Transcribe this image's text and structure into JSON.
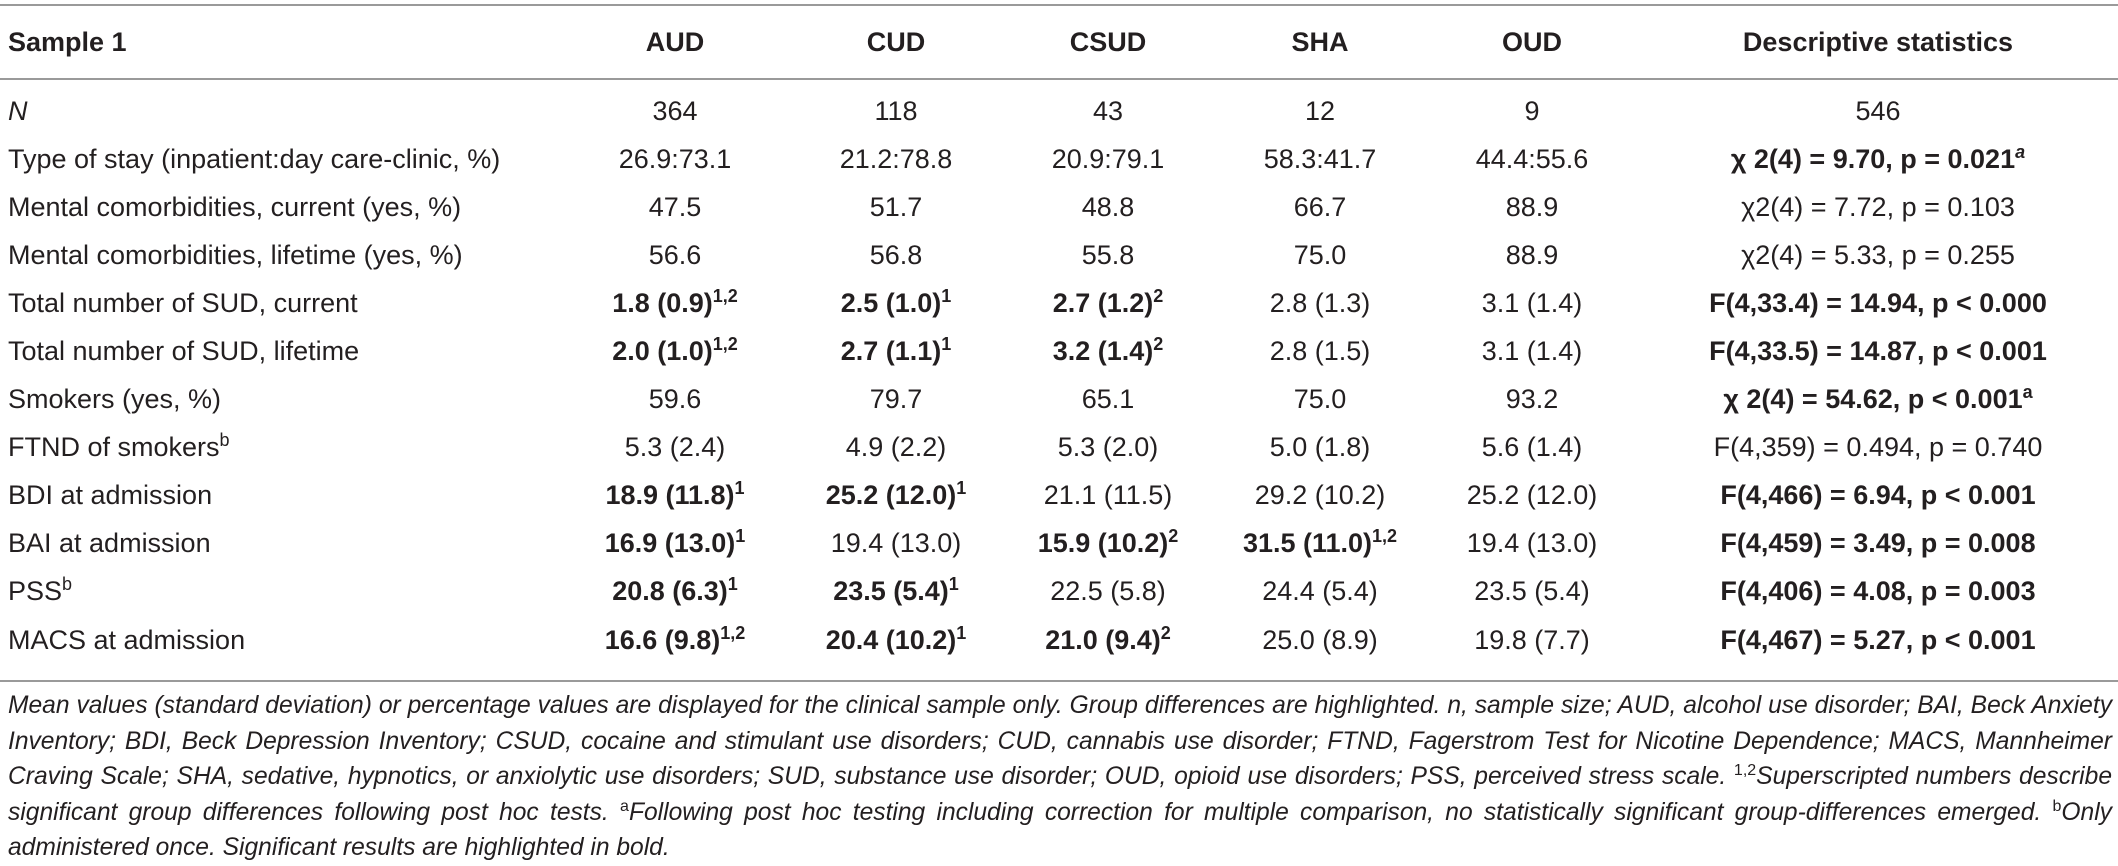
{
  "table": {
    "headers": [
      "Sample 1",
      "AUD",
      "CUD",
      "CSUD",
      "SHA",
      "OUD",
      "Descriptive statistics"
    ],
    "rows": [
      {
        "label": "N",
        "cells": [
          "364",
          "118",
          "43",
          "12",
          "9",
          "546"
        ],
        "sups": [
          "",
          "",
          "",
          "",
          "",
          ""
        ]
      },
      {
        "label": "Type of stay (inpatient:day care-clinic, %)",
        "cells": [
          "26.9:73.1",
          "21.2:78.8",
          "20.9:79.1",
          "58.3:41.7",
          "44.4:55.6",
          "χ 2(4) = 9.70, p = 0.021"
        ],
        "sups": [
          "",
          "",
          "",
          "",
          "",
          "a"
        ]
      },
      {
        "label": "Mental comorbidities, current (yes, %)",
        "cells": [
          "47.5",
          "51.7",
          "48.8",
          "66.7",
          "88.9",
          "χ2(4) = 7.72, p = 0.103"
        ],
        "sups": [
          "",
          "",
          "",
          "",
          "",
          ""
        ]
      },
      {
        "label": "Mental comorbidities, lifetime (yes, %)",
        "cells": [
          "56.6",
          "56.8",
          "55.8",
          "75.0",
          "88.9",
          "χ2(4) = 5.33, p = 0.255"
        ],
        "sups": [
          "",
          "",
          "",
          "",
          "",
          ""
        ]
      },
      {
        "label": "Total number of SUD, current",
        "cells": [
          "1.8 (0.9)",
          "2.5 (1.0)",
          "2.7 (1.2)",
          "2.8 (1.3)",
          "3.1 (1.4)",
          "F(4,33.4) = 14.94, p < 0.000"
        ],
        "sups": [
          "1,2",
          "1",
          "2",
          "",
          "",
          ""
        ]
      },
      {
        "label": "Total number of SUD, lifetime",
        "cells": [
          "2.0 (1.0)",
          "2.7 (1.1)",
          "3.2 (1.4)",
          "2.8 (1.5)",
          "3.1 (1.4)",
          "F(4,33.5) = 14.87, p < 0.001"
        ],
        "sups": [
          "1,2",
          "1",
          "2",
          "",
          "",
          ""
        ]
      },
      {
        "label": "Smokers (yes, %)",
        "cells": [
          "59.6",
          "79.7",
          "65.1",
          "75.0",
          "93.2",
          "χ 2(4) = 54.62, p < 0.001"
        ],
        "sups": [
          "",
          "",
          "",
          "",
          "",
          "a"
        ]
      },
      {
        "label": "FTND of smokers",
        "label_sup": "b",
        "cells": [
          "5.3 (2.4)",
          "4.9 (2.2)",
          "5.3 (2.0)",
          "5.0 (1.8)",
          "5.6 (1.4)",
          "F(4,359) = 0.494, p = 0.740"
        ],
        "sups": [
          "",
          "",
          "",
          "",
          "",
          ""
        ]
      },
      {
        "label": "BDI at admission",
        "cells": [
          "18.9 (11.8)",
          "25.2 (12.0)",
          "21.1 (11.5)",
          "29.2 (10.2)",
          "25.2 (12.0)",
          "F(4,466) = 6.94, p < 0.001"
        ],
        "sups": [
          "1",
          "1",
          "",
          "",
          "",
          ""
        ]
      },
      {
        "label": "BAI at admission",
        "cells": [
          "16.9 (13.0)",
          "19.4 (13.0)",
          "15.9 (10.2)",
          "31.5 (11.0)",
          "19.4 (13.0)",
          "F(4,459) = 3.49, p = 0.008"
        ],
        "sups": [
          "1",
          "",
          "2",
          "1,2",
          "",
          ""
        ]
      },
      {
        "label": "PSS",
        "label_sup": "b",
        "cells": [
          "20.8 (6.3)",
          "23.5 (5.4)",
          "22.5 (5.8)",
          "24.4 (5.4)",
          "23.5 (5.4)",
          "F(4,406) = 4.08, p = 0.003"
        ],
        "sups": [
          "1",
          "1",
          "",
          "",
          "",
          ""
        ]
      },
      {
        "label": "MACS at admission",
        "cells": [
          "16.6 (9.8)",
          "20.4 (10.2)",
          "21.0 (9.4)",
          "25.0 (8.9)",
          "19.8 (7.7)",
          "F(4,467) = 5.27, p < 0.001"
        ],
        "sups": [
          "1,2",
          "1",
          "2",
          "",
          "",
          ""
        ]
      }
    ]
  },
  "footnote": {
    "main": "Mean values (standard deviation) or percentage values are displayed for the clinical sample only. Group differences are highlighted. n, sample size; AUD, alcohol use disorder; BAI, Beck Anxiety Inventory; BDI, Beck Depression Inventory; CSUD, cocaine and stimulant use disorders; CUD, cannabis use disorder; FTND, Fagerstrom Test for Nicotine Dependence; MACS, Mannheimer Craving Scale; SHA, sedative, hypnotics, or anxiolytic use disorders; SUD, substance use disorder; OUD, opioid use disorders; PSS, perceived stress scale. ",
    "sup_12": "1,2",
    "note_12": "Superscripted numbers describe significant group differences following post hoc tests. ",
    "sup_a": "a",
    "note_a": "Following post hoc testing including correction for multiple comparison, no statistically significant group-differences emerged. ",
    "sup_b": "b",
    "note_b": "Only administered once. Significant results are highlighted in bold."
  }
}
